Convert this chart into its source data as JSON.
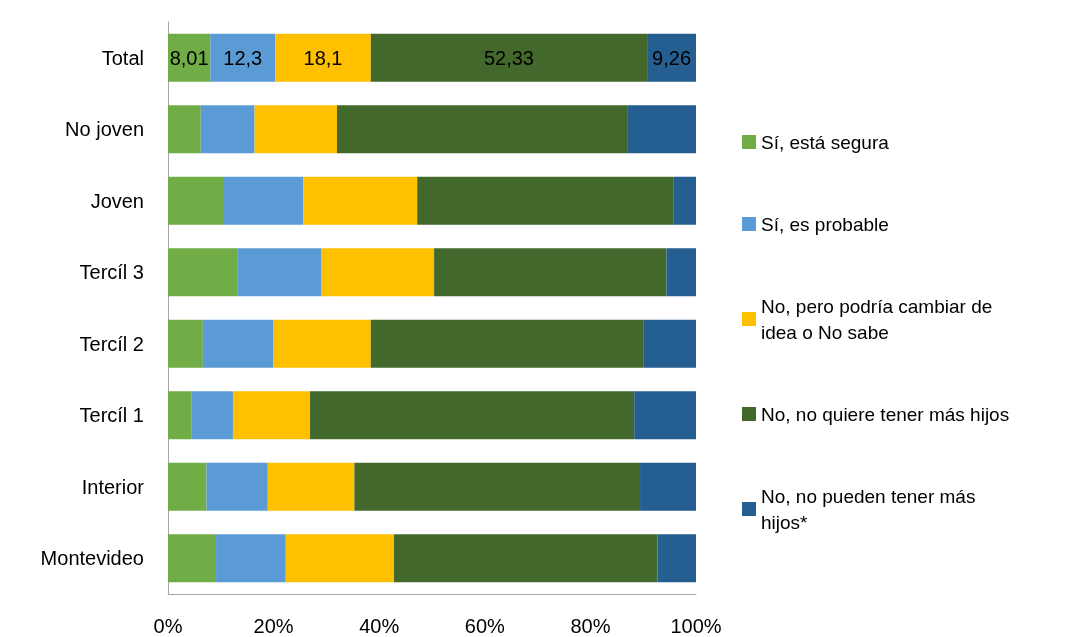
{
  "chart_data": {
    "type": "bar",
    "orientation": "horizontal",
    "stacked": true,
    "categories": [
      "Total",
      "No joven",
      "Joven",
      "Tercíl 3",
      "Tercíl 2",
      "Tercíl 1",
      "Interior",
      "Montevideo"
    ],
    "series": [
      {
        "name": "Sí, está segura",
        "color": "#70ad47",
        "values": [
          8.01,
          6.2,
          10.6,
          13.1,
          6.6,
          4.5,
          7.3,
          9.1
        ],
        "value_labels": [
          "8,01",
          null,
          null,
          null,
          null,
          null,
          null,
          null
        ]
      },
      {
        "name": "Sí, es probable",
        "color": "#5b9bd5",
        "values": [
          12.3,
          10.2,
          15.0,
          16.0,
          13.3,
          7.8,
          11.6,
          13.2
        ],
        "value_labels": [
          "12,3",
          null,
          null,
          null,
          null,
          null,
          null,
          null
        ]
      },
      {
        "name": "No, pero podría cambiar de idea o No sabe",
        "color": "#ffc000",
        "values": [
          18.1,
          15.6,
          21.6,
          21.3,
          18.5,
          14.6,
          16.4,
          20.5
        ],
        "value_labels": [
          "18,1",
          null,
          null,
          null,
          null,
          null,
          null,
          null
        ]
      },
      {
        "name": "No, no quiere tener más hijos",
        "color": "#43682b",
        "values": [
          52.33,
          55.1,
          48.6,
          44.0,
          51.6,
          61.4,
          54.1,
          49.9
        ],
        "value_labels": [
          "52,33",
          null,
          null,
          null,
          null,
          null,
          null,
          null
        ]
      },
      {
        "name": "No, no pueden tener más hijos*",
        "color": "#255e91",
        "values": [
          9.26,
          12.9,
          4.2,
          5.6,
          10.0,
          11.7,
          10.6,
          7.3
        ],
        "value_labels": [
          "9,26",
          null,
          null,
          null,
          null,
          null,
          null,
          null
        ]
      }
    ],
    "xlim": [
      0,
      100
    ],
    "xticks": [
      {
        "value": 0,
        "label": "0%"
      },
      {
        "value": 20,
        "label": "20%"
      },
      {
        "value": 40,
        "label": "40%"
      },
      {
        "value": 60,
        "label": "60%"
      },
      {
        "value": 80,
        "label": "80%"
      },
      {
        "value": 100,
        "label": "100%"
      }
    ],
    "grid": false,
    "legend": "right"
  }
}
